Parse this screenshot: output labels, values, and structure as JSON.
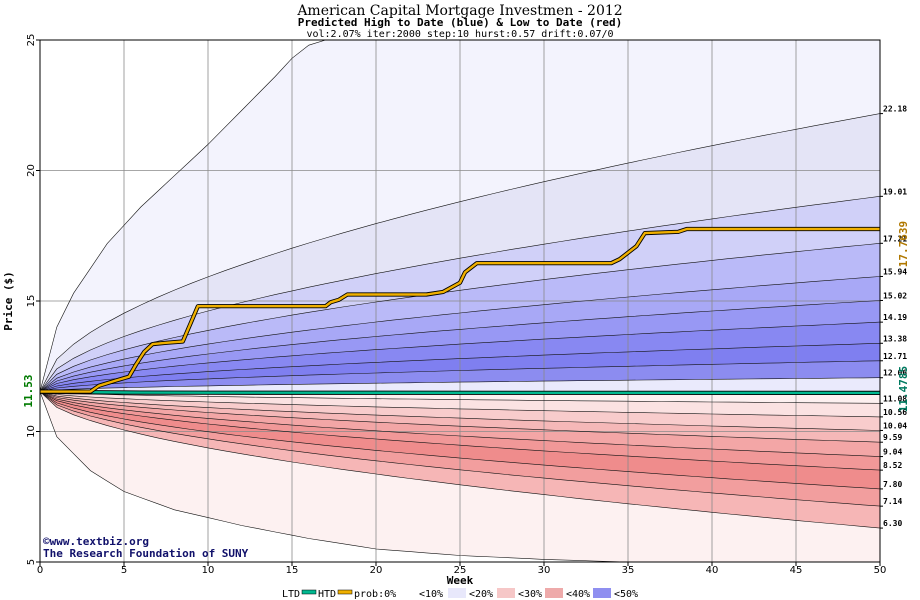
{
  "title": "American Capital Mortgage Investmen - 2012",
  "subtitle": "Predicted High to Date (blue) &  Low to Date (red)",
  "params": "vol:2.07% iter:2000 step:10 hurst:0.57 drift:0.07/0",
  "credit": {
    "line1": "©www.textbiz.org",
    "line2": "The Research Foundation of SUNY"
  },
  "legend": {
    "ltd": "LTD",
    "htd": "HTD",
    "prob": "prob:0%",
    "b10": "<10%",
    "b20": "<20%",
    "b30": "<30%",
    "b40": "<40%",
    "b50": "<50%"
  },
  "colors": {
    "htd_line": "#f0b000",
    "ltd_line": "#00b890",
    "left_value": "#007a00",
    "right_high_value": "#b07800",
    "right_low_value": "#007a60"
  },
  "chart_data": {
    "type": "area",
    "xlabel": "Week",
    "ylabel": "Price ($)",
    "xlim": [
      0,
      50
    ],
    "ylim": [
      5,
      25
    ],
    "x_ticks": [
      0,
      5,
      10,
      15,
      20,
      25,
      30,
      35,
      40,
      45,
      50
    ],
    "y_ticks": [
      5,
      10,
      15,
      20,
      25
    ],
    "grid": true,
    "start_price": 11.53,
    "start_price_label": "11.53",
    "htd_final_label": "17.7639",
    "ltd_final_label": "11.4785",
    "upper_band_endpoints": [
      12.06,
      12.71,
      13.38,
      14.19,
      15.02,
      15.94,
      17.21,
      19.01,
      22.18
    ],
    "upper_band_labels": [
      "12.06",
      "12.71",
      "13.38",
      "14.19",
      "15.02",
      "15.94",
      "17.21",
      "19.01",
      "22.18"
    ],
    "lower_band_endpoints": [
      11.08,
      10.56,
      10.04,
      9.59,
      9.04,
      8.52,
      7.8,
      7.14,
      6.3
    ],
    "lower_band_labels": [
      "11.08",
      "10.56",
      "10.04",
      "9.59",
      "9.04",
      "8.52",
      "7.80",
      "7.14",
      "6.30"
    ],
    "outer_envelope": {
      "upper": [
        [
          0,
          11.53
        ],
        [
          1,
          14.0
        ],
        [
          2,
          15.3
        ],
        [
          4,
          17.2
        ],
        [
          6,
          18.6
        ],
        [
          8,
          19.8
        ],
        [
          10,
          21.0
        ],
        [
          12,
          22.3
        ],
        [
          14,
          23.6
        ],
        [
          15,
          24.3
        ],
        [
          16,
          24.8
        ],
        [
          17,
          25.0
        ]
      ],
      "lower": [
        [
          0,
          11.53
        ],
        [
          1,
          9.8
        ],
        [
          3,
          8.5
        ],
        [
          5,
          7.7
        ],
        [
          8,
          7.0
        ],
        [
          12,
          6.4
        ],
        [
          16,
          5.9
        ],
        [
          20,
          5.5
        ],
        [
          25,
          5.25
        ],
        [
          30,
          5.1
        ],
        [
          35,
          5.0
        ]
      ]
    },
    "htd_series": [
      [
        0,
        11.53
      ],
      [
        3,
        11.53
      ],
      [
        3.5,
        11.75
      ],
      [
        4.5,
        11.95
      ],
      [
        5.3,
        12.1
      ],
      [
        5.7,
        12.55
      ],
      [
        6.2,
        13.05
      ],
      [
        6.7,
        13.35
      ],
      [
        7.5,
        13.4
      ],
      [
        8.5,
        13.45
      ],
      [
        9,
        14.2
      ],
      [
        9.4,
        14.8
      ],
      [
        12,
        14.8
      ],
      [
        17,
        14.8
      ],
      [
        17.3,
        14.95
      ],
      [
        17.8,
        15.05
      ],
      [
        18.3,
        15.25
      ],
      [
        23,
        15.25
      ],
      [
        24,
        15.35
      ],
      [
        25,
        15.7
      ],
      [
        25.3,
        16.1
      ],
      [
        26,
        16.45
      ],
      [
        30,
        16.45
      ],
      [
        34,
        16.45
      ],
      [
        34.5,
        16.6
      ],
      [
        35.5,
        17.1
      ],
      [
        36,
        17.6
      ],
      [
        38,
        17.65
      ],
      [
        38.5,
        17.76
      ],
      [
        50,
        17.76
      ]
    ],
    "ltd_series": [
      [
        0,
        11.53
      ],
      [
        2,
        11.51
      ],
      [
        6,
        11.49
      ],
      [
        10,
        11.485
      ],
      [
        50,
        11.4785
      ]
    ]
  }
}
